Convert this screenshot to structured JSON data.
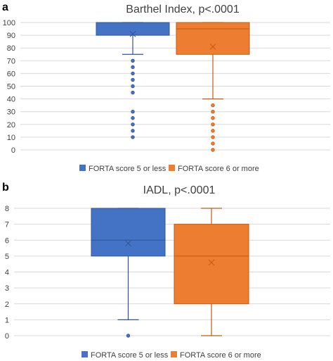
{
  "chart_data": [
    {
      "type": "box",
      "panel_label": "a",
      "title": "Barthel Index, p<.0001",
      "ylim": [
        0,
        100
      ],
      "yticks": [
        0,
        10,
        20,
        30,
        40,
        50,
        60,
        70,
        80,
        90,
        100
      ],
      "grid": true,
      "legend_position": "bottom",
      "series": [
        {
          "name": "FORTA score 5 or less",
          "color": "#4472C4",
          "q1": 90,
          "median": 100,
          "q3": 100,
          "mean": 91,
          "whisker_low": 75,
          "whisker_high": 100,
          "outliers": [
            70,
            65,
            60,
            55,
            50,
            45,
            30,
            25,
            20,
            15,
            10
          ]
        },
        {
          "name": "FORTA score 6 or more",
          "color": "#ED7D31",
          "q1": 75,
          "median": 95,
          "q3": 100,
          "mean": 81,
          "whisker_low": 40,
          "whisker_high": 100,
          "outliers": [
            35,
            30,
            25,
            20,
            15,
            10,
            5,
            0
          ]
        }
      ]
    },
    {
      "type": "box",
      "panel_label": "b",
      "title": "IADL, p<.0001",
      "ylim": [
        0,
        8
      ],
      "yticks": [
        0,
        1,
        2,
        3,
        4,
        5,
        6,
        7,
        8
      ],
      "grid": true,
      "legend_position": "bottom",
      "series": [
        {
          "name": "FORTA score 5 or less",
          "color": "#4472C4",
          "q1": 5,
          "median": 6,
          "q3": 8,
          "mean": 5.8,
          "whisker_low": 1,
          "whisker_high": 8,
          "outliers": [
            0
          ]
        },
        {
          "name": "FORTA score 6 or more",
          "color": "#ED7D31",
          "q1": 2,
          "median": 5,
          "q3": 7,
          "mean": 4.6,
          "whisker_low": 0,
          "whisker_high": 8,
          "outliers": []
        }
      ]
    }
  ]
}
